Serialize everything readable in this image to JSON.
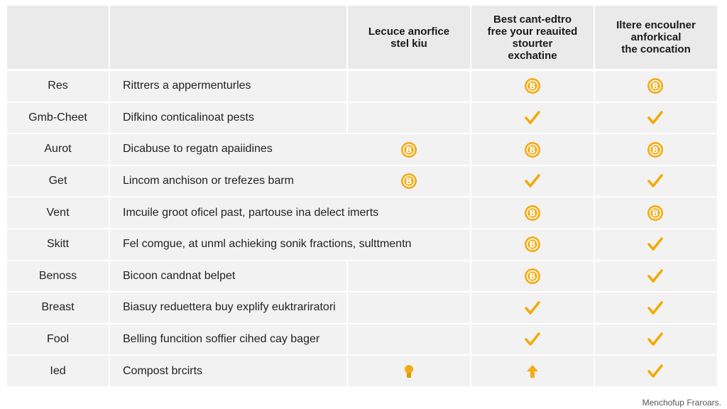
{
  "header": {
    "columns": [
      [],
      [],
      [
        "Lecuce anorfice",
        "stel kiu"
      ],
      [
        "Best cant-edtro",
        "free your reauited",
        "stourter",
        "exchatine"
      ],
      [
        "Iltere encoulner",
        "anforkical",
        "the concation"
      ]
    ]
  },
  "table": {
    "rows": [
      [
        "Res",
        "Rittrers a appermenturles"
      ],
      [
        "Gmb-Cheet",
        "Difkino conticalinoat pests"
      ],
      [
        "Aurot",
        "Dicabuse to regatn apaiidines"
      ],
      [
        "Get",
        "Lincom anchison or trefezes barm"
      ],
      [
        "Vent",
        "Imcuile groot oficel past, partouse ina delect imerts"
      ],
      [
        "Skitt",
        "Fel comgue, at unml achieking sonik fractions, sulttmentn"
      ],
      [
        "Benoss",
        "Bicoon candnat belpet"
      ],
      [
        "Breast",
        "Biasuy reduettera buy explify euktrariratori"
      ],
      [
        "Fool",
        "Belling funcition soffier cihed cay bager"
      ],
      [
        "Ied",
        "Compost brcirts"
      ]
    ]
  },
  "footer": {
    "note": "Menchofup Fraroars."
  }
}
